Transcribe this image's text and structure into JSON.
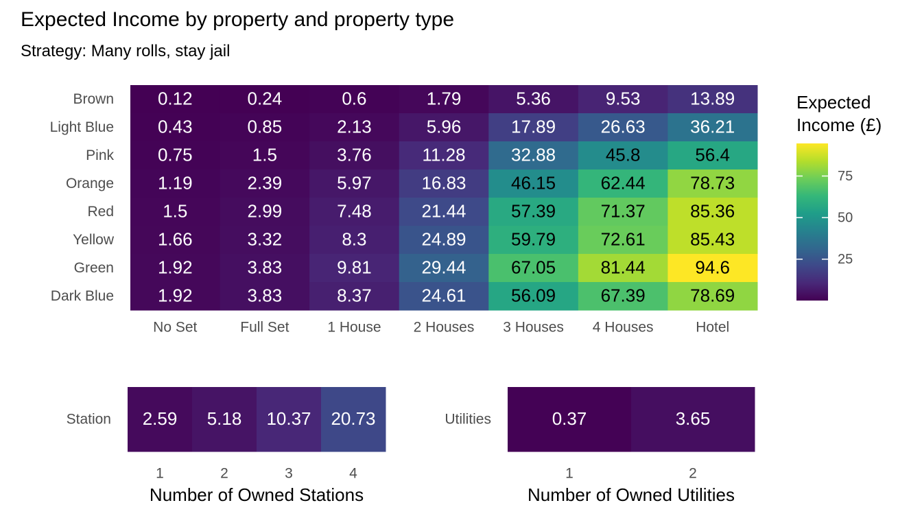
{
  "title": "Expected Income by property and property type",
  "subtitle": "Strategy: Many rolls, stay jail",
  "colors": {
    "viridis": [
      "#440154",
      "#482878",
      "#3e4989",
      "#31688e",
      "#26828e",
      "#1f9e89",
      "#35b779",
      "#6ece58",
      "#b5de2b",
      "#fde725"
    ],
    "label_light": "#ffffff",
    "label_dark": "#000000",
    "axis_text": "#4d4d4d"
  },
  "legend": {
    "title_line1": "Expected",
    "title_line2": "Income (£)",
    "ticks": [
      "25",
      "50",
      "75"
    ],
    "tick_values": [
      25,
      50,
      75
    ],
    "min": 0.12,
    "max": 94.6
  },
  "chart_data": [
    {
      "type": "heatmap",
      "x": [
        "No Set",
        "Full Set",
        "1 House",
        "2 Houses",
        "3 Houses",
        "4 Houses",
        "Hotel"
      ],
      "y": [
        "Brown",
        "Light Blue",
        "Pink",
        "Orange",
        "Red",
        "Yellow",
        "Green",
        "Dark Blue"
      ],
      "values": [
        [
          0.12,
          0.24,
          0.6,
          1.79,
          5.36,
          9.53,
          13.89
        ],
        [
          0.43,
          0.85,
          2.13,
          5.96,
          17.89,
          26.63,
          36.21
        ],
        [
          0.75,
          1.5,
          3.76,
          11.28,
          32.88,
          45.8,
          56.4
        ],
        [
          1.19,
          2.39,
          5.97,
          16.83,
          46.15,
          62.44,
          78.73
        ],
        [
          1.5,
          2.99,
          7.48,
          21.44,
          57.39,
          71.37,
          85.36
        ],
        [
          1.66,
          3.32,
          8.3,
          24.89,
          59.79,
          72.61,
          85.43
        ],
        [
          1.92,
          3.83,
          9.81,
          29.44,
          67.05,
          81.44,
          94.6
        ],
        [
          1.92,
          3.83,
          8.37,
          24.61,
          56.09,
          67.39,
          78.69
        ]
      ],
      "labels": [
        [
          "0.12",
          "0.24",
          "0.6",
          "1.79",
          "5.36",
          "9.53",
          "13.89"
        ],
        [
          "0.43",
          "0.85",
          "2.13",
          "5.96",
          "17.89",
          "26.63",
          "36.21"
        ],
        [
          "0.75",
          "1.5",
          "3.76",
          "11.28",
          "32.88",
          "45.8",
          "56.4"
        ],
        [
          "1.19",
          "2.39",
          "5.97",
          "16.83",
          "46.15",
          "62.44",
          "78.73"
        ],
        [
          "1.5",
          "2.99",
          "7.48",
          "21.44",
          "57.39",
          "71.37",
          "85.36"
        ],
        [
          "1.66",
          "3.32",
          "8.3",
          "24.89",
          "59.79",
          "72.61",
          "85.43"
        ],
        [
          "1.92",
          "3.83",
          "9.81",
          "29.44",
          "67.05",
          "81.44",
          "94.6"
        ],
        [
          "1.92",
          "3.83",
          "8.37",
          "24.61",
          "56.09",
          "67.39",
          "78.69"
        ]
      ],
      "xlabel": "",
      "ylabel": ""
    },
    {
      "type": "heatmap",
      "x": [
        "1",
        "2",
        "3",
        "4"
      ],
      "y": [
        "Station"
      ],
      "values": [
        [
          2.59,
          5.18,
          10.37,
          20.73
        ]
      ],
      "labels": [
        [
          "2.59",
          "5.18",
          "10.37",
          "20.73"
        ]
      ],
      "xlabel": "Number of Owned Stations",
      "ylabel": ""
    },
    {
      "type": "heatmap",
      "x": [
        "1",
        "2"
      ],
      "y": [
        "Utilities"
      ],
      "values": [
        [
          0.37,
          3.65
        ]
      ],
      "labels": [
        [
          "0.37",
          "3.65"
        ]
      ],
      "xlabel": "Number of Owned Utilities",
      "ylabel": ""
    }
  ]
}
